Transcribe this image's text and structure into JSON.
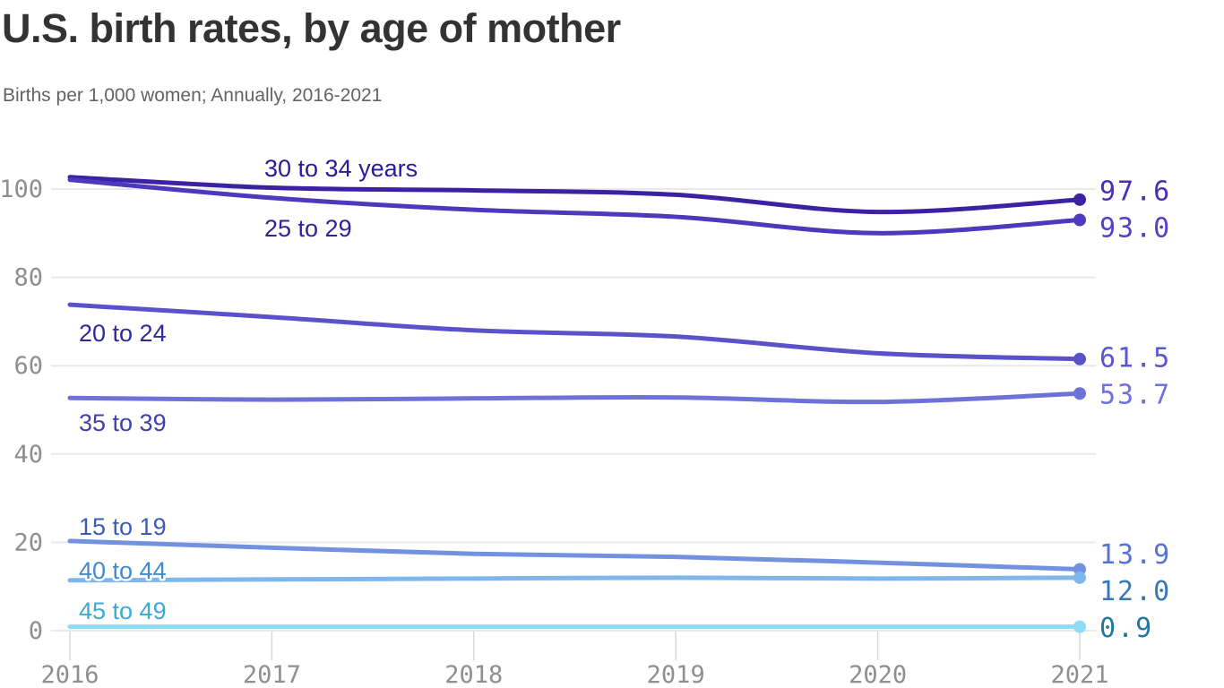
{
  "header": {
    "title": "U.S. birth rates, by age of mother",
    "subtitle": "Births per 1,000 women; Annually, 2016-2021"
  },
  "chart_data": {
    "type": "line",
    "title": "U.S. birth rates, by age of mother",
    "subtitle": "Births per 1,000 women; Annually, 2016-2021",
    "ylabel": "Births per 1,000 women",
    "x": [
      2016,
      2017,
      2018,
      2019,
      2020,
      2021
    ],
    "x_tick_labels": [
      "2016",
      "2017",
      "2018",
      "2019",
      "2020",
      "2021"
    ],
    "y_ticks": [
      0,
      20,
      40,
      60,
      80,
      100
    ],
    "y_tick_labels": [
      "0",
      "20",
      "40",
      "60",
      "80",
      "100"
    ],
    "ylim": [
      0,
      112
    ],
    "grid": "horizontal",
    "legend_position": "inline-labels",
    "series": [
      {
        "name": "30 to 34 years",
        "label": "30 to 34 years",
        "values": [
          102.7,
          100.3,
          99.7,
          98.7,
          94.8,
          97.6
        ],
        "end_label": "97.6",
        "line_color": "#3b21a3",
        "label_color": "#2a1a96",
        "value_color": "#4a2dbe"
      },
      {
        "name": "25 to 29",
        "label": "25 to 29",
        "values": [
          102.1,
          98.0,
          95.3,
          93.7,
          90.0,
          93.0
        ],
        "end_label": "93.0",
        "line_color": "#4c39bc",
        "label_color": "#31219f",
        "value_color": "#5240c8"
      },
      {
        "name": "20 to 24",
        "label": "20 to 24",
        "values": [
          73.8,
          71.0,
          68.0,
          66.6,
          62.8,
          61.5
        ],
        "end_label": "61.5",
        "line_color": "#5a52c9",
        "label_color": "#2c2b9b",
        "value_color": "#5a55d1"
      },
      {
        "name": "35 to 39",
        "label": "35 to 39",
        "values": [
          52.7,
          52.3,
          52.6,
          52.8,
          51.8,
          53.7
        ],
        "end_label": "53.7",
        "line_color": "#6d72d9",
        "label_color": "#3f3fae",
        "value_color": "#6e72da"
      },
      {
        "name": "15 to 19",
        "label": "15 to 19",
        "values": [
          20.3,
          18.8,
          17.4,
          16.7,
          15.4,
          13.9
        ],
        "end_label": "13.9",
        "line_color": "#7391e1",
        "label_color": "#3c5cb8",
        "value_color": "#5673d6"
      },
      {
        "name": "40 to 44",
        "label": "40 to 44",
        "values": [
          11.4,
          11.6,
          11.8,
          12.0,
          11.8,
          12.0
        ],
        "end_label": "12.0",
        "line_color": "#7fb7ec",
        "label_color": "#4489ca",
        "value_color": "#3778bc"
      },
      {
        "name": "45 to 49",
        "label": "45 to 49",
        "values": [
          0.9,
          0.9,
          0.9,
          0.9,
          0.9,
          0.9
        ],
        "end_label": "0.9",
        "line_color": "#8cdcf6",
        "label_color": "#3fa8d5",
        "value_color": "#23789d"
      }
    ],
    "style": {
      "grid_color": "#e9e9eb",
      "tick_mark_color": "#d8d8db",
      "axis_text_color": "#8e8e93",
      "title_color": "#333336",
      "subtitle_color": "#636367"
    }
  }
}
